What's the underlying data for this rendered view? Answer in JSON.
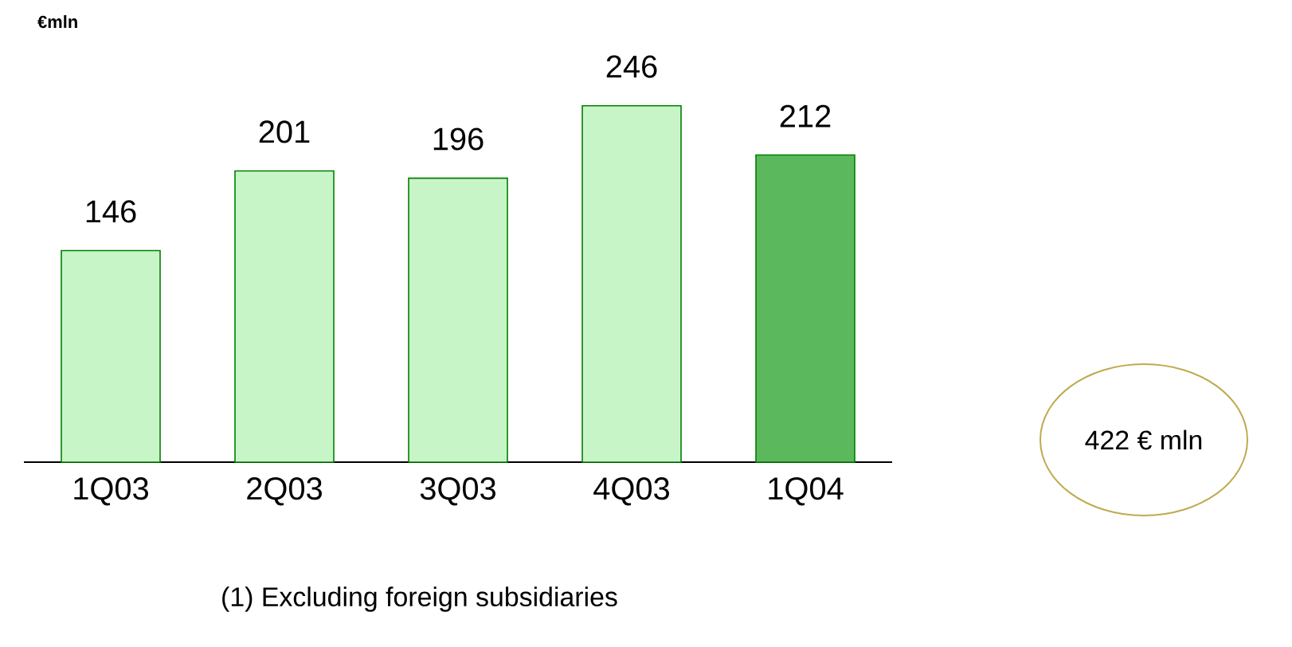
{
  "chart_data": {
    "type": "bar",
    "ylabel": "€mln",
    "categories": [
      "1Q03",
      "2Q03",
      "3Q03",
      "4Q03",
      "1Q04"
    ],
    "values": [
      146,
      201,
      196,
      246,
      212
    ],
    "colors": [
      "#c8f5c8",
      "#c8f5c8",
      "#c8f5c8",
      "#c8f5c8",
      "#5cb85c"
    ],
    "data_labels": true,
    "annotations": [
      "422 € mln",
      "(1) Excluding foreign subsidiaries"
    ]
  }
}
